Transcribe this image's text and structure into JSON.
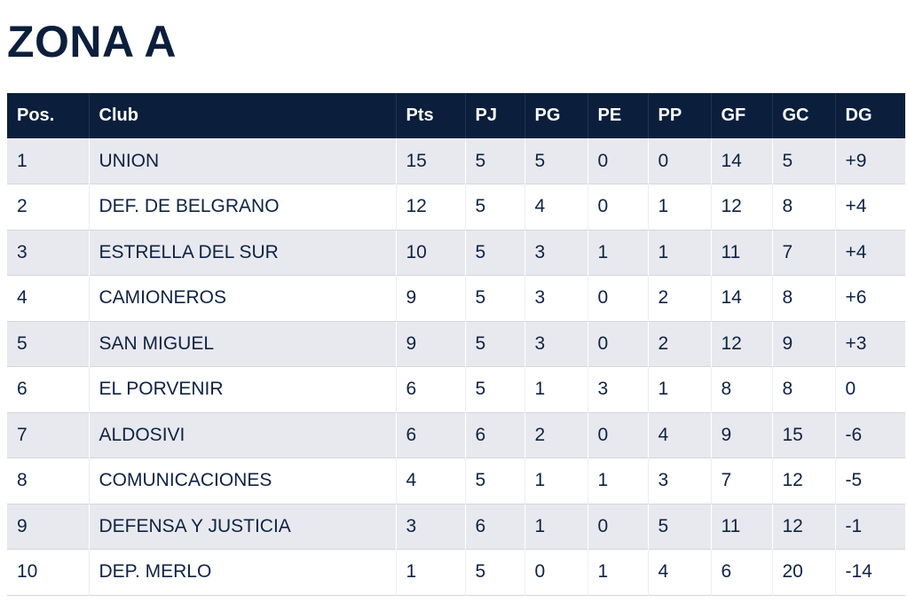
{
  "title": "ZONA A",
  "table": {
    "headers": [
      "Pos.",
      "Club",
      "Pts",
      "PJ",
      "PG",
      "PE",
      "PP",
      "GF",
      "GC",
      "DG"
    ],
    "rows": [
      [
        "1",
        "UNION",
        "15",
        "5",
        "5",
        "0",
        "0",
        "14",
        "5",
        "+9"
      ],
      [
        "2",
        "DEF. DE BELGRANO",
        "12",
        "5",
        "4",
        "0",
        "1",
        "12",
        "8",
        "+4"
      ],
      [
        "3",
        "ESTRELLA DEL SUR",
        "10",
        "5",
        "3",
        "1",
        "1",
        "11",
        "7",
        "+4"
      ],
      [
        "4",
        "CAMIONEROS",
        "9",
        "5",
        "3",
        "0",
        "2",
        "14",
        "8",
        "+6"
      ],
      [
        "5",
        "SAN MIGUEL",
        "9",
        "5",
        "3",
        "0",
        "2",
        "12",
        "9",
        "+3"
      ],
      [
        "6",
        "EL PORVENIR",
        "6",
        "5",
        "1",
        "3",
        "1",
        "8",
        "8",
        "0"
      ],
      [
        "7",
        "ALDOSIVI",
        "6",
        "6",
        "2",
        "0",
        "4",
        "9",
        "15",
        "-6"
      ],
      [
        "8",
        "COMUNICACIONES",
        "4",
        "5",
        "1",
        "1",
        "3",
        "7",
        "12",
        "-5"
      ],
      [
        "9",
        "DEFENSA Y JUSTICIA",
        "3",
        "6",
        "1",
        "0",
        "5",
        "11",
        "12",
        "-1"
      ],
      [
        "10",
        "DEP. MERLO",
        "1",
        "5",
        "0",
        "1",
        "4",
        "6",
        "20",
        "-14"
      ]
    ]
  },
  "colors": {
    "header_bg": "#0b1f3c",
    "row_alt_bg": "#e8e9ee",
    "text": "#0e2344"
  }
}
